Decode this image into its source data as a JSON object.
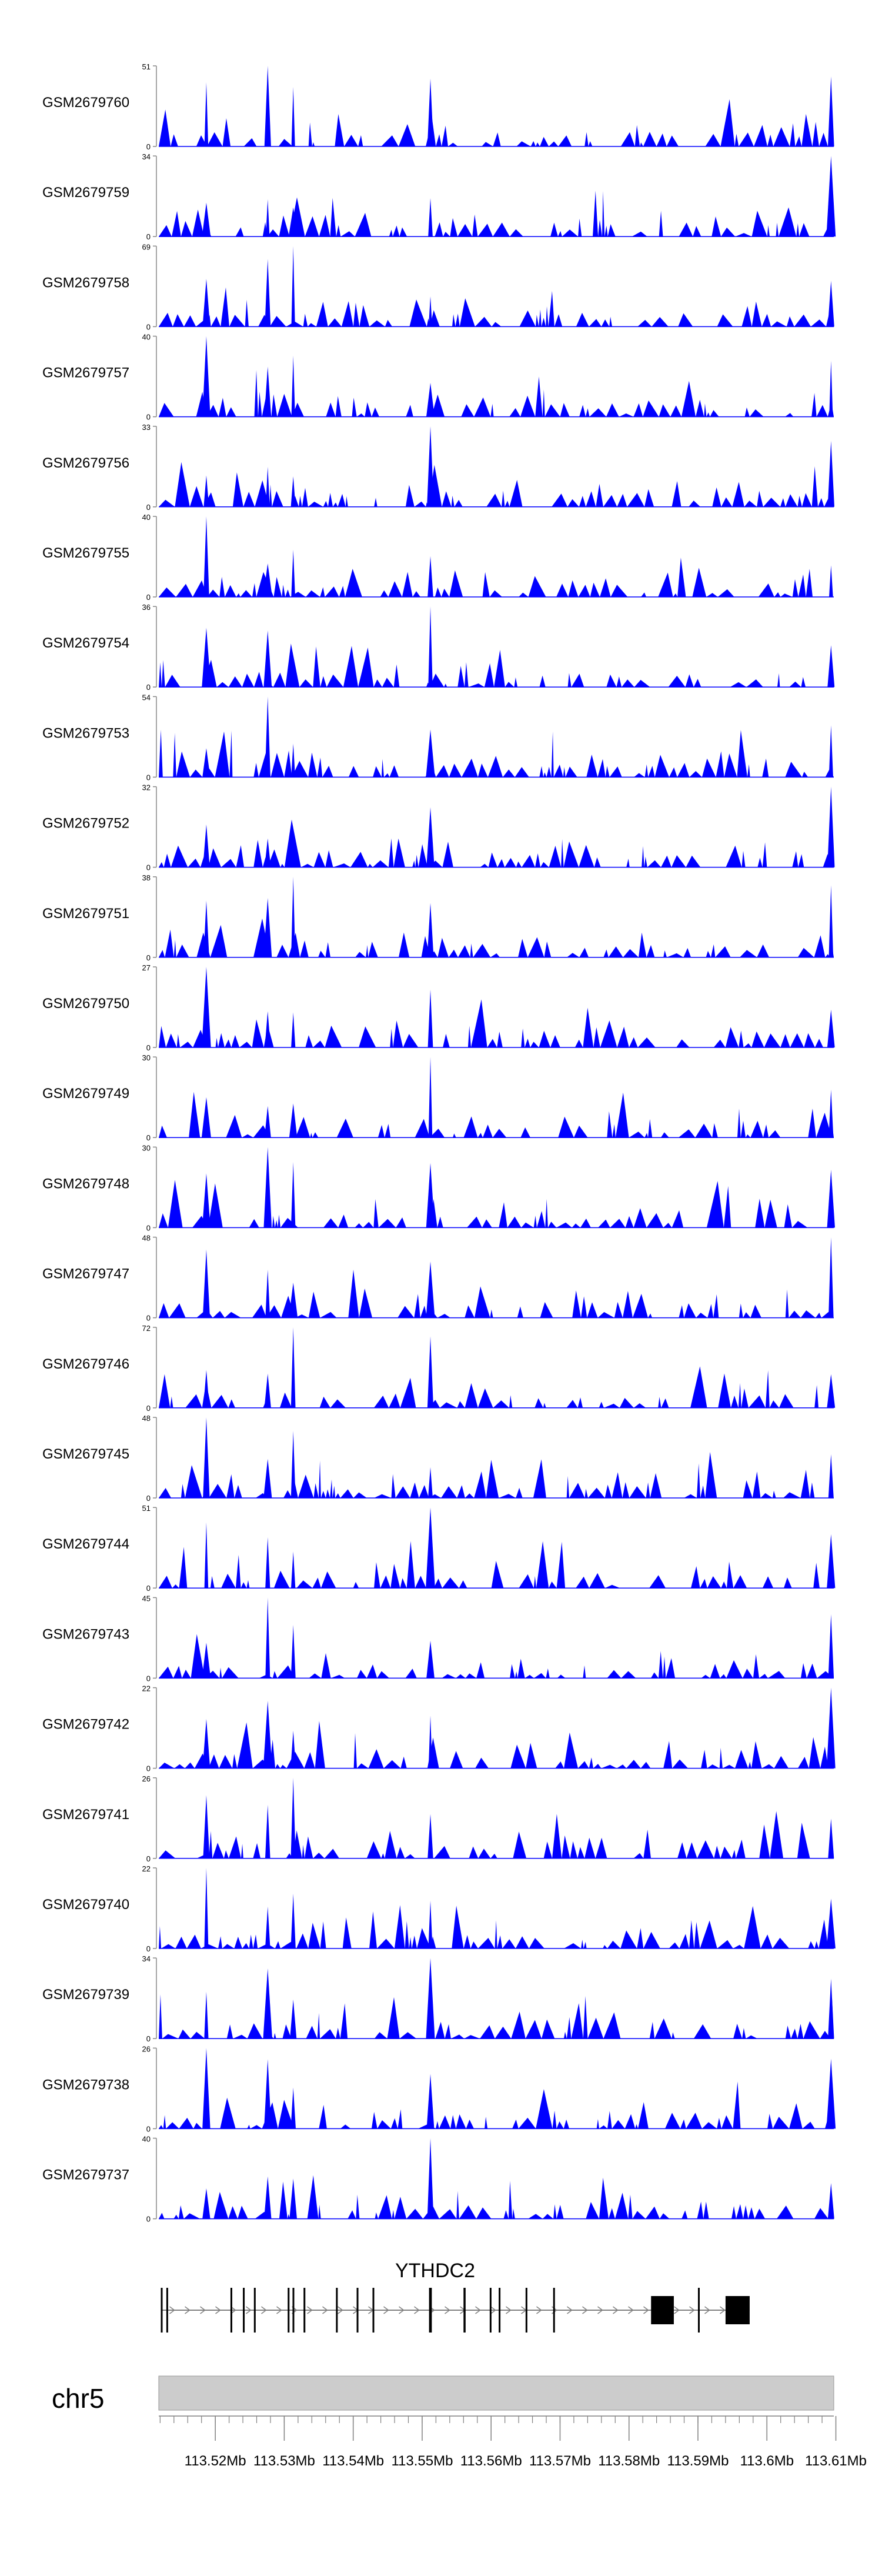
{
  "chart_data": {
    "type": "area",
    "tracks": [
      {
        "name": "GSM2679760",
        "ymax": "51",
        "ymin": "0",
        "ymax_num": 51
      },
      {
        "name": "GSM2679759",
        "ymax": "34",
        "ymin": "0",
        "ymax_num": 34
      },
      {
        "name": "GSM2679758",
        "ymax": "69",
        "ymin": "0",
        "ymax_num": 69
      },
      {
        "name": "GSM2679757",
        "ymax": "40",
        "ymin": "0",
        "ymax_num": 40
      },
      {
        "name": "GSM2679756",
        "ymax": "33",
        "ymin": "0",
        "ymax_num": 33
      },
      {
        "name": "GSM2679755",
        "ymax": "40",
        "ymin": "0",
        "ymax_num": 40
      },
      {
        "name": "GSM2679754",
        "ymax": "36",
        "ymin": "0",
        "ymax_num": 36
      },
      {
        "name": "GSM2679753",
        "ymax": "54",
        "ymin": "0",
        "ymax_num": 54
      },
      {
        "name": "GSM2679752",
        "ymax": "32",
        "ymin": "0",
        "ymax_num": 32
      },
      {
        "name": "GSM2679751",
        "ymax": "38",
        "ymin": "0",
        "ymax_num": 38
      },
      {
        "name": "GSM2679750",
        "ymax": "27",
        "ymin": "0",
        "ymax_num": 27
      },
      {
        "name": "GSM2679749",
        "ymax": "30",
        "ymin": "0",
        "ymax_num": 30
      },
      {
        "name": "GSM2679748",
        "ymax": "30",
        "ymin": "0",
        "ymax_num": 30
      },
      {
        "name": "GSM2679747",
        "ymax": "48",
        "ymin": "0",
        "ymax_num": 48
      },
      {
        "name": "GSM2679746",
        "ymax": "72",
        "ymin": "0",
        "ymax_num": 72
      },
      {
        "name": "GSM2679745",
        "ymax": "48",
        "ymin": "0",
        "ymax_num": 48
      },
      {
        "name": "GSM2679744",
        "ymax": "51",
        "ymin": "0",
        "ymax_num": 51
      },
      {
        "name": "GSM2679743",
        "ymax": "45",
        "ymin": "0",
        "ymax_num": 45
      },
      {
        "name": "GSM2679742",
        "ymax": "22",
        "ymin": "0",
        "ymax_num": 22
      },
      {
        "name": "GSM2679741",
        "ymax": "26",
        "ymin": "0",
        "ymax_num": 26
      },
      {
        "name": "GSM2679740",
        "ymax": "22",
        "ymin": "0",
        "ymax_num": 22
      },
      {
        "name": "GSM2679739",
        "ymax": "34",
        "ymin": "0",
        "ymax_num": 34
      },
      {
        "name": "GSM2679738",
        "ymax": "26",
        "ymin": "0",
        "ymax_num": 26
      },
      {
        "name": "GSM2679737",
        "ymax": "40",
        "ymin": "0",
        "ymax_num": 40
      }
    ],
    "peaks_mb": [
      113.5187,
      113.5276,
      113.5313,
      113.5512,
      113.6093
    ],
    "x_range_mb": [
      113.5118,
      113.6097
    ],
    "series_color": "#0000ff",
    "gene": {
      "name": "YTHDC2",
      "strand": "+",
      "exons_mb": [
        [
          113.5121,
          113.5123
        ],
        [
          113.5129,
          113.5131
        ],
        [
          113.5222,
          113.5224
        ],
        [
          113.524,
          113.5242
        ],
        [
          113.5256,
          113.5258
        ],
        [
          113.5305,
          113.5307
        ],
        [
          113.5312,
          113.5314
        ],
        [
          113.5328,
          113.533
        ],
        [
          113.5375,
          113.5377
        ],
        [
          113.5405,
          113.5407
        ],
        [
          113.5428,
          113.543
        ],
        [
          113.551,
          113.5514
        ],
        [
          113.556,
          113.5563
        ],
        [
          113.5598,
          113.56
        ],
        [
          113.5611,
          113.5613
        ],
        [
          113.565,
          113.5652
        ],
        [
          113.569,
          113.5692
        ],
        [
          113.5832,
          113.5865
        ],
        [
          113.59,
          113.5902
        ],
        [
          113.594,
          113.5975
        ]
      ]
    },
    "chromosome": "chr5",
    "axis": {
      "ticks_mb": [
        113.52,
        113.53,
        113.54,
        113.55,
        113.56,
        113.57,
        113.58,
        113.59,
        113.6,
        113.61
      ],
      "tick_labels": [
        "113.52Mb",
        "113.53Mb",
        "113.54Mb",
        "113.55Mb",
        "113.56Mb",
        "113.57Mb",
        "113.58Mb",
        "113.59Mb",
        "113.6Mb",
        "113.61Mb"
      ],
      "minor_tick_step_mb": 0.002
    }
  }
}
